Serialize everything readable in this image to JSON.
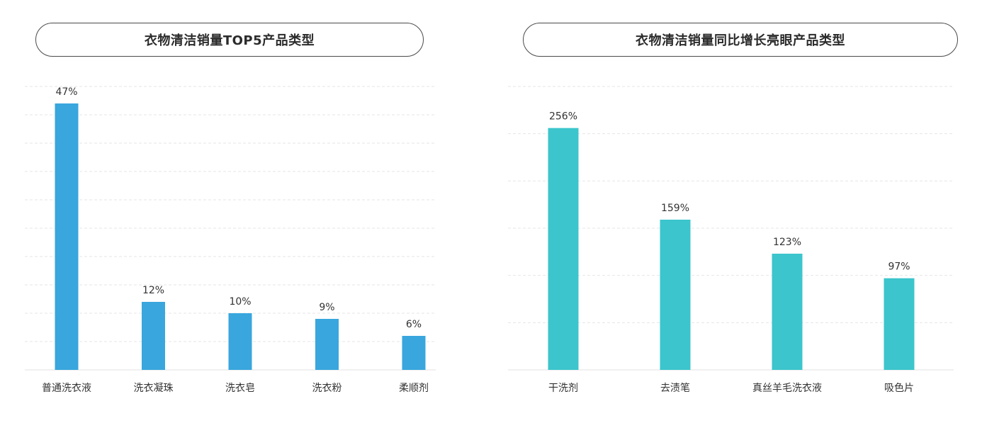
{
  "chart_data": [
    {
      "type": "bar",
      "title": "衣物清洁销量TOP5产品类型",
      "categories": [
        "普通洗衣液",
        "洗衣凝珠",
        "洗衣皂",
        "洗衣粉",
        "柔顺剂"
      ],
      "values": [
        47,
        12,
        10,
        9,
        6
      ],
      "value_labels": [
        "47%",
        "12%",
        "10%",
        "9%",
        "6%"
      ],
      "ylim": [
        0,
        50
      ],
      "grid": true,
      "color": "#39a6dd"
    },
    {
      "type": "bar",
      "title": "衣物清洁销量同比增长亮眼产品类型",
      "categories": [
        "干洗剂",
        "去渍笔",
        "真丝羊毛洗衣液",
        "吸色片"
      ],
      "values": [
        256,
        159,
        123,
        97
      ],
      "value_labels": [
        "256%",
        "159%",
        "123%",
        "97%"
      ],
      "ylim": [
        0,
        300
      ],
      "grid": true,
      "color": "#3cc5cc"
    }
  ]
}
